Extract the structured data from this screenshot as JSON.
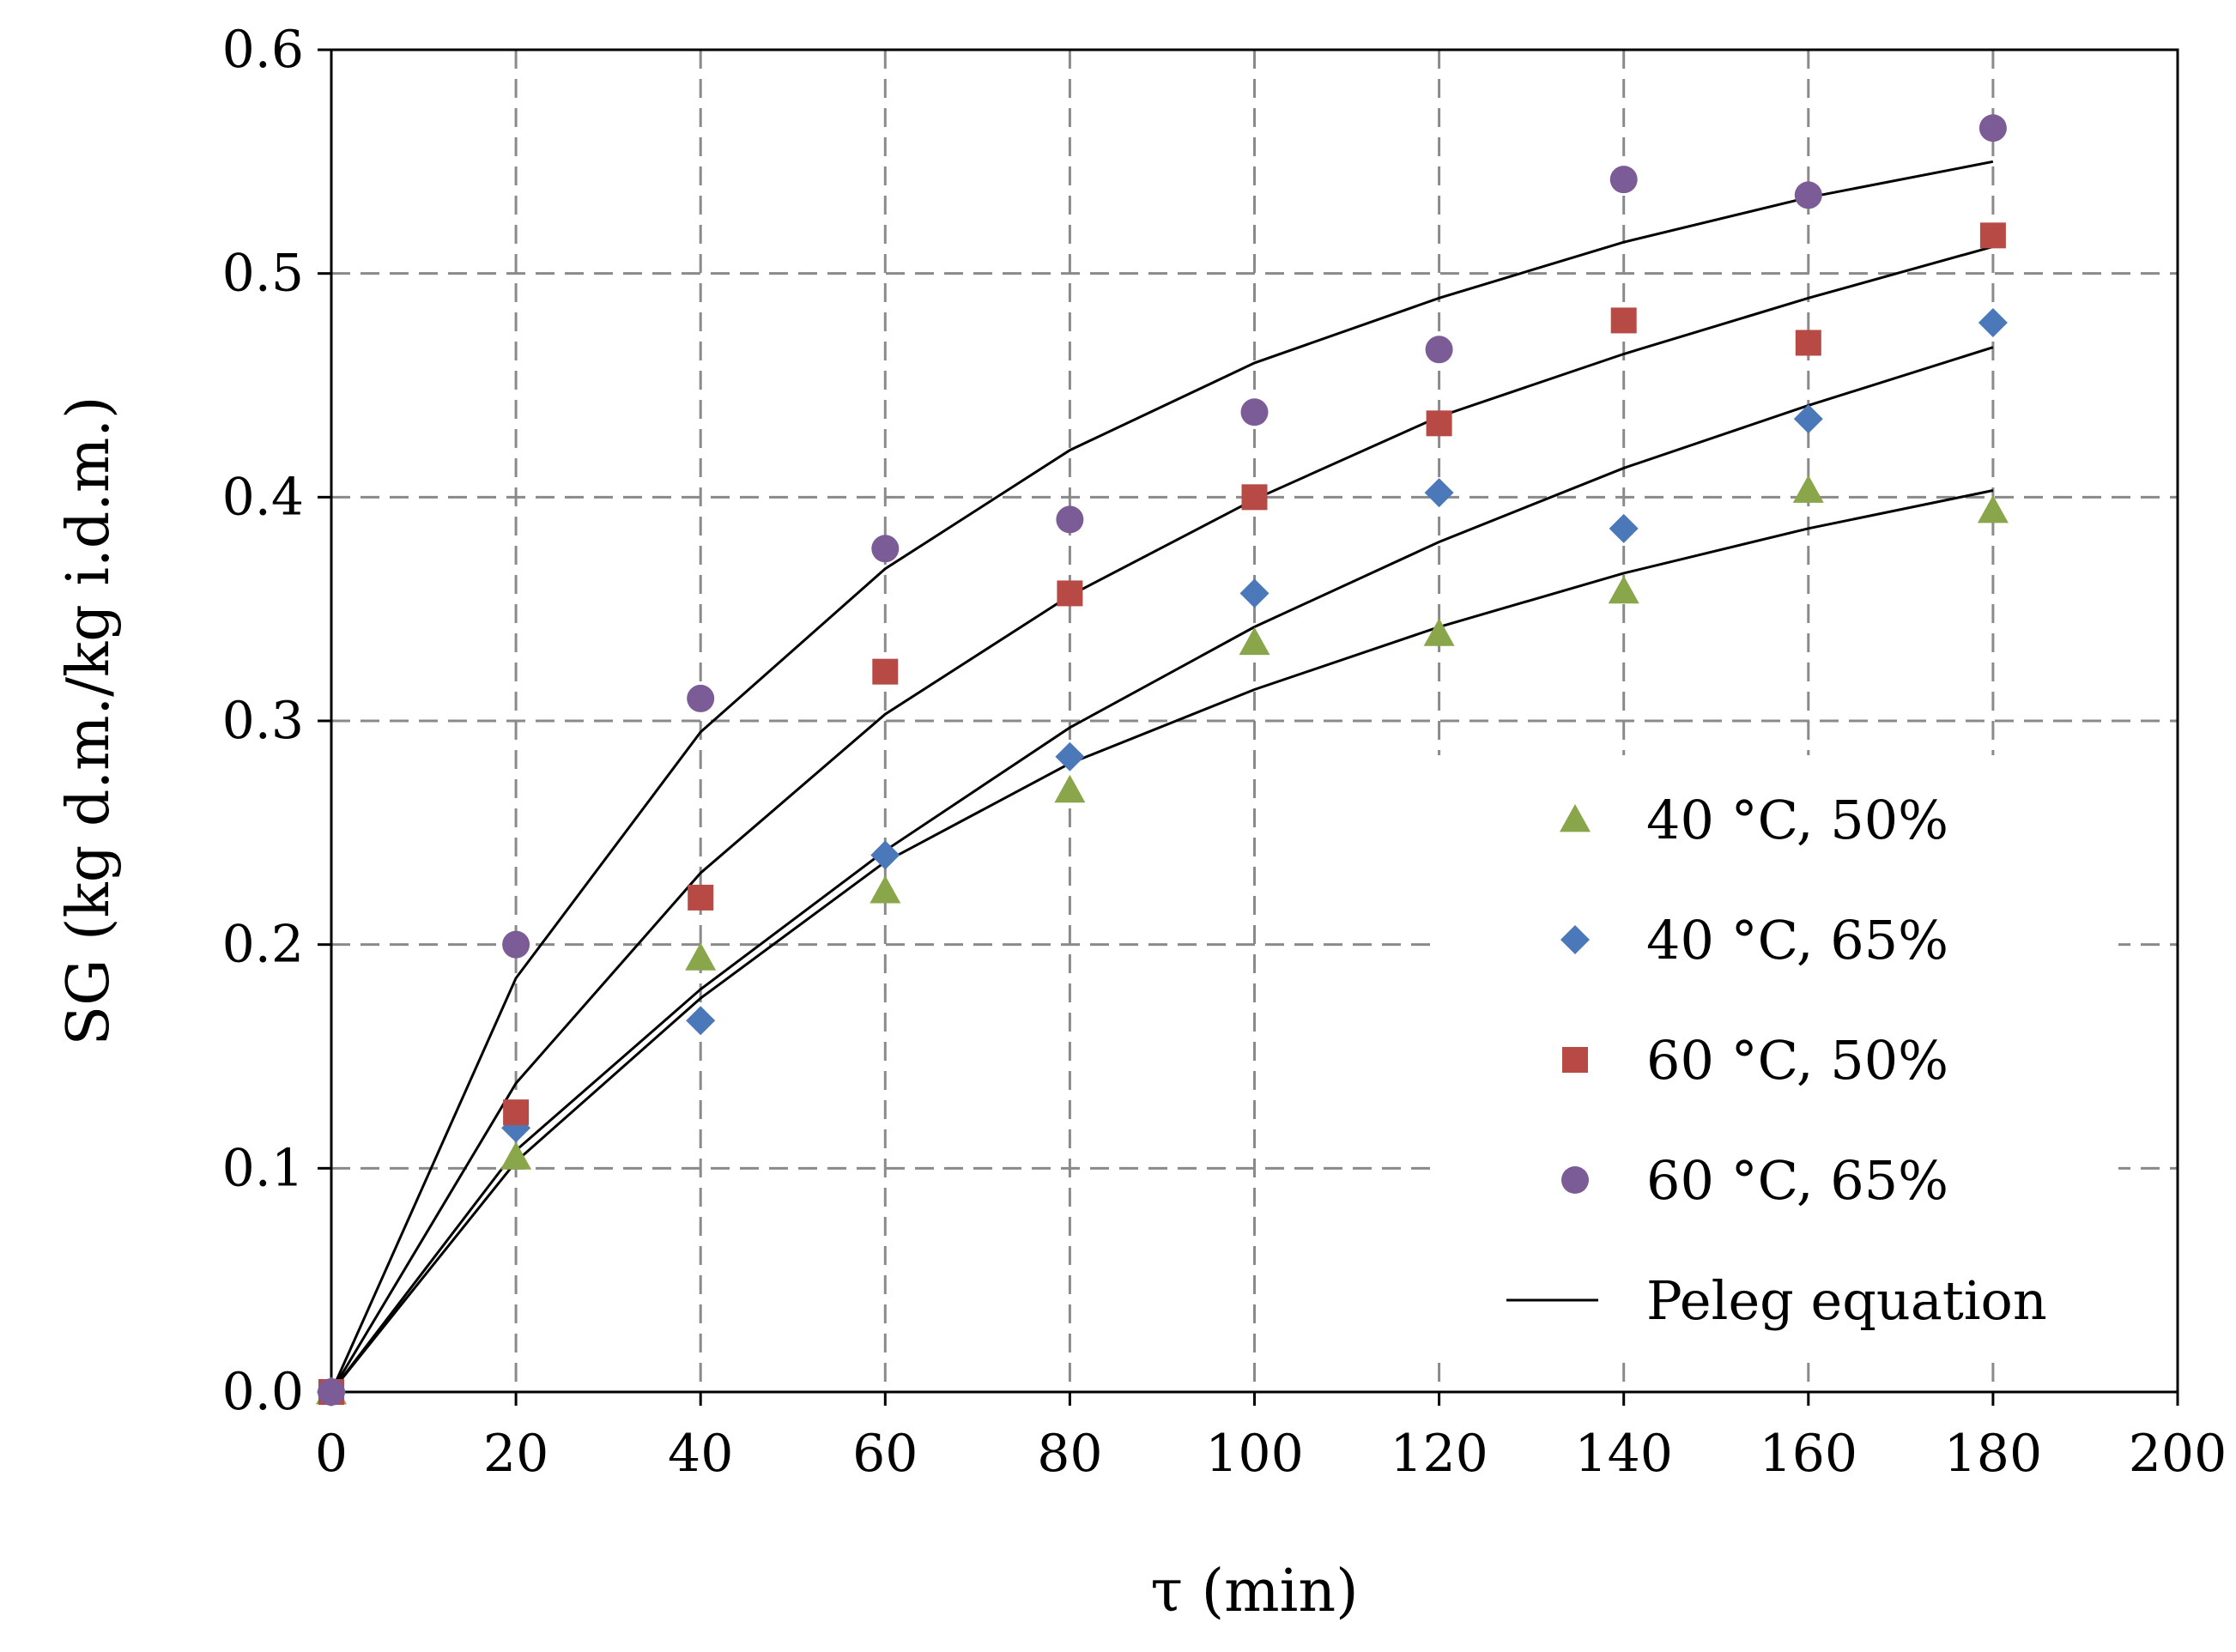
{
  "chart_data": {
    "type": "scatter",
    "title": "",
    "xlabel": "τ (min)",
    "ylabel": "SG (kg d.m./kg i.d.m.)",
    "xlim": [
      0,
      200
    ],
    "ylim": [
      0.0,
      0.6
    ],
    "x_ticks": [
      "0",
      "20",
      "40",
      "60",
      "80",
      "100",
      "120",
      "140",
      "160",
      "180",
      "200"
    ],
    "y_ticks": [
      "0.0",
      "0.1",
      "0.2",
      "0.3",
      "0.4",
      "0.5",
      "0.6"
    ],
    "grid": true,
    "legend_position": "bottom-right",
    "x": [
      0,
      20,
      40,
      60,
      80,
      100,
      120,
      140,
      160,
      180
    ],
    "series": [
      {
        "name": "40 °C, 50%",
        "marker": "triangle",
        "color": "#8aa64a",
        "values": [
          0.0,
          0.105,
          0.194,
          0.224,
          0.269,
          0.335,
          0.339,
          0.358,
          0.403,
          0.394
        ],
        "fit": [
          0.0,
          0.103,
          0.176,
          0.237,
          0.281,
          0.314,
          0.342,
          0.366,
          0.386,
          0.403
        ]
      },
      {
        "name": "40 °C, 65%",
        "marker": "diamond",
        "color": "#4a78b8",
        "values": [
          0.0,
          0.118,
          0.166,
          0.24,
          0.284,
          0.357,
          0.402,
          0.386,
          0.435,
          0.478
        ],
        "fit": [
          0.0,
          0.108,
          0.18,
          0.242,
          0.297,
          0.342,
          0.38,
          0.413,
          0.441,
          0.467
        ]
      },
      {
        "name": "60 °C, 50%",
        "marker": "square",
        "color": "#b84a46",
        "values": [
          0.0,
          0.125,
          0.221,
          0.322,
          0.357,
          0.4,
          0.433,
          0.479,
          0.469,
          0.517
        ],
        "fit": [
          0.0,
          0.138,
          0.232,
          0.303,
          0.356,
          0.399,
          0.436,
          0.464,
          0.489,
          0.512
        ]
      },
      {
        "name": "60 °C, 65%",
        "marker": "circle",
        "color": "#7c5c96",
        "values": [
          0.0,
          0.2,
          0.31,
          0.377,
          0.39,
          0.438,
          0.466,
          0.542,
          0.535,
          0.565
        ],
        "fit": [
          0.0,
          0.185,
          0.295,
          0.368,
          0.421,
          0.46,
          0.489,
          0.514,
          0.534,
          0.55
        ]
      }
    ],
    "fit_legend": "Peleg equation",
    "fit_color": "#000000"
  }
}
